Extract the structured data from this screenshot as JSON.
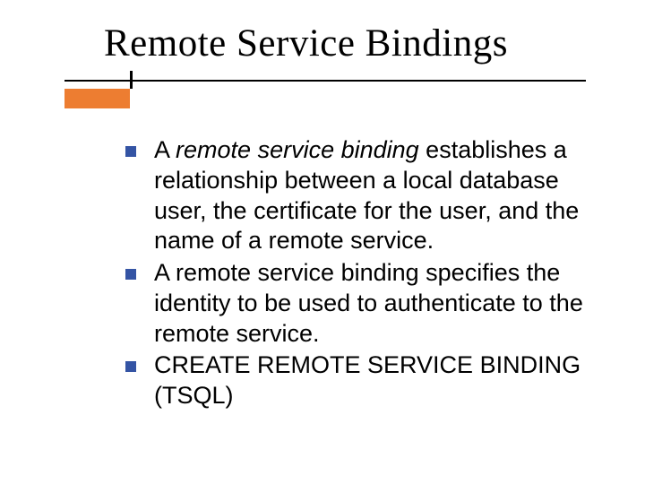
{
  "slide": {
    "title": "Remote Service Bindings",
    "title_font_family": "Times New Roman, serif",
    "title_font_size_pt": 32,
    "title_color": "#000000",
    "rule": {
      "line_color": "#000000",
      "tick_color": "#000000",
      "accent_color": "#ed7d31"
    },
    "bullets": [
      {
        "prefix": "A ",
        "italic": "remote service binding",
        "suffix": " establishes a relationship between a local database user, the certificate for the user, and the name of a remote service."
      },
      {
        "prefix": "",
        "italic": "",
        "suffix": "A remote service binding specifies the identity to be used to authenticate to the remote service."
      },
      {
        "prefix": "",
        "italic": "",
        "suffix": "CREATE REMOTE SERVICE BINDING (TSQL)"
      }
    ],
    "bullet_marker_color": "#3454a4",
    "body_font_size_pt": 20,
    "body_color": "#000000",
    "background_color": "#ffffff"
  }
}
